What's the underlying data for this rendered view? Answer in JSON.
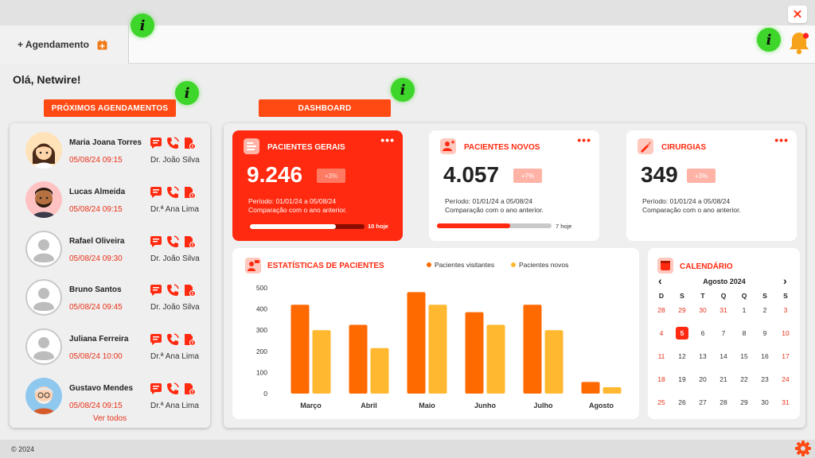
{
  "window": {
    "close_label": "✕"
  },
  "tab": {
    "label": "+ Agendamento",
    "icon": "calendar-add-icon"
  },
  "header": {
    "info_label": "i",
    "bell_icon": "bell-icon"
  },
  "greeting": "Olá, Netwire!",
  "buttons": {
    "proximos": "PRÓXIMOS AGENDAMENTOS",
    "dashboard": "DASHBOARD"
  },
  "appointments": {
    "items": [
      {
        "name": "Maria Joana Torres",
        "datetime": "05/08/24 09:15",
        "doctor": "Dr. João Silva",
        "avatar": "woman-avatar"
      },
      {
        "name": "Lucas Almeida",
        "datetime": "05/08/24 09:15",
        "doctor": "Dr.ª Ana Lima",
        "avatar": "bearded-man-avatar"
      },
      {
        "name": "Rafael Oliveira",
        "datetime": "05/08/24 09:30",
        "doctor": "Dr. João Silva",
        "avatar": "default-avatar"
      },
      {
        "name": "Bruno Santos",
        "datetime": "05/08/24 09:45",
        "doctor": "Dr. João Silva",
        "avatar": "default-avatar"
      },
      {
        "name": "Juliana Ferreira",
        "datetime": "05/08/24 10:00",
        "doctor": "Dr.ª Ana Lima",
        "avatar": "default-avatar"
      },
      {
        "name": "Gustavo Mendes",
        "datetime": "05/08/24 09:15",
        "doctor": "Dr.ª Ana Lima",
        "avatar": "old-man-avatar"
      }
    ],
    "see_all": "Ver todos"
  },
  "cards": [
    {
      "title": "PACIENTES GERAIS",
      "value": "9.246",
      "badge": "+3%",
      "period": "Período: 01/01/24 a 05/08/24",
      "comparison": "Comparação com o ano anterior.",
      "progress": 0.75,
      "progress_label": "10 hoje",
      "dots": "•••"
    },
    {
      "title": "PACIENTES NOVOS",
      "value": "4.057",
      "badge": "+7%",
      "period": "Período: 01/01/24 a 05/08/24",
      "comparison": "Comparação com o ano anterior.",
      "progress": 0.64,
      "progress_label": "7 hoje",
      "dots": "•••"
    },
    {
      "title": "CIRURGIAS",
      "value": "349",
      "badge": "+3%",
      "period": "Período: 01/01/24 a 05/08/24",
      "comparison": "Comparação com o ano anterior.",
      "dots": "•••"
    }
  ],
  "chart_data": {
    "type": "bar",
    "title": "ESTATÍSTICAS DE PACIENTES",
    "categories": [
      "Março",
      "Abril",
      "Maio",
      "Junho",
      "Julho",
      "Agosto"
    ],
    "series": [
      {
        "name": "Pacientes visitantes",
        "values": [
          420,
          325,
          480,
          385,
          420,
          55
        ],
        "color": "#ff6a00"
      },
      {
        "name": "Pacientes novos",
        "values": [
          300,
          215,
          420,
          325,
          300,
          30
        ],
        "color": "#ffb830"
      }
    ],
    "yticks": [
      0,
      100,
      200,
      300,
      400,
      500
    ],
    "ylim": [
      0,
      500
    ],
    "legend": "top"
  },
  "calendar": {
    "title": "CALENDÁRIO",
    "month": "Agosto 2024",
    "prev": "‹",
    "next": "›",
    "weekdays": [
      "D",
      "S",
      "T",
      "Q",
      "Q",
      "S",
      "S"
    ],
    "weeks": [
      [
        "28",
        "29",
        "30",
        "31",
        "1",
        "2",
        "3"
      ],
      [
        "4",
        "5",
        "6",
        "7",
        "8",
        "9",
        "10"
      ],
      [
        "11",
        "12",
        "13",
        "14",
        "15",
        "16",
        "17"
      ],
      [
        "18",
        "19",
        "20",
        "21",
        "22",
        "23",
        "24"
      ],
      [
        "25",
        "26",
        "27",
        "28",
        "29",
        "30",
        "31"
      ]
    ],
    "today": "5"
  },
  "footer": {
    "copyright": "© 2024"
  },
  "colors": {
    "accent": "#ff4a14",
    "red": "#ff2a0f",
    "green_info": "#3ed62a"
  }
}
